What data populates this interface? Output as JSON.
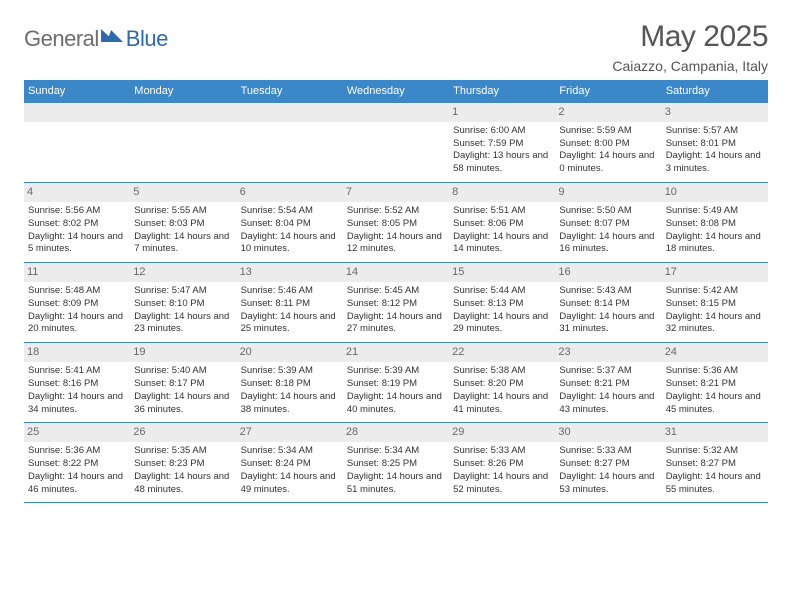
{
  "logo": {
    "general": "General",
    "blue": "Blue"
  },
  "colors": {
    "header_bg": "#3b87c8",
    "header_text": "#ffffff",
    "day_num_bg": "#ececec",
    "day_num_text": "#6a6a6a",
    "body_text": "#333333",
    "title_text": "#555555",
    "logo_grey": "#6d6d6d",
    "logo_blue": "#2f6aaa",
    "rule": "#3b87c8"
  },
  "title": "May 2025",
  "location": "Caiazzo, Campania, Italy",
  "dayHeaders": [
    "Sunday",
    "Monday",
    "Tuesday",
    "Wednesday",
    "Thursday",
    "Friday",
    "Saturday"
  ],
  "weeks": [
    [
      null,
      null,
      null,
      null,
      {
        "n": "1",
        "sunrise": "6:00 AM",
        "sunset": "7:59 PM",
        "daylight": "13 hours and 58 minutes."
      },
      {
        "n": "2",
        "sunrise": "5:59 AM",
        "sunset": "8:00 PM",
        "daylight": "14 hours and 0 minutes."
      },
      {
        "n": "3",
        "sunrise": "5:57 AM",
        "sunset": "8:01 PM",
        "daylight": "14 hours and 3 minutes."
      }
    ],
    [
      {
        "n": "4",
        "sunrise": "5:56 AM",
        "sunset": "8:02 PM",
        "daylight": "14 hours and 5 minutes."
      },
      {
        "n": "5",
        "sunrise": "5:55 AM",
        "sunset": "8:03 PM",
        "daylight": "14 hours and 7 minutes."
      },
      {
        "n": "6",
        "sunrise": "5:54 AM",
        "sunset": "8:04 PM",
        "daylight": "14 hours and 10 minutes."
      },
      {
        "n": "7",
        "sunrise": "5:52 AM",
        "sunset": "8:05 PM",
        "daylight": "14 hours and 12 minutes."
      },
      {
        "n": "8",
        "sunrise": "5:51 AM",
        "sunset": "8:06 PM",
        "daylight": "14 hours and 14 minutes."
      },
      {
        "n": "9",
        "sunrise": "5:50 AM",
        "sunset": "8:07 PM",
        "daylight": "14 hours and 16 minutes."
      },
      {
        "n": "10",
        "sunrise": "5:49 AM",
        "sunset": "8:08 PM",
        "daylight": "14 hours and 18 minutes."
      }
    ],
    [
      {
        "n": "11",
        "sunrise": "5:48 AM",
        "sunset": "8:09 PM",
        "daylight": "14 hours and 20 minutes."
      },
      {
        "n": "12",
        "sunrise": "5:47 AM",
        "sunset": "8:10 PM",
        "daylight": "14 hours and 23 minutes."
      },
      {
        "n": "13",
        "sunrise": "5:46 AM",
        "sunset": "8:11 PM",
        "daylight": "14 hours and 25 minutes."
      },
      {
        "n": "14",
        "sunrise": "5:45 AM",
        "sunset": "8:12 PM",
        "daylight": "14 hours and 27 minutes."
      },
      {
        "n": "15",
        "sunrise": "5:44 AM",
        "sunset": "8:13 PM",
        "daylight": "14 hours and 29 minutes."
      },
      {
        "n": "16",
        "sunrise": "5:43 AM",
        "sunset": "8:14 PM",
        "daylight": "14 hours and 31 minutes."
      },
      {
        "n": "17",
        "sunrise": "5:42 AM",
        "sunset": "8:15 PM",
        "daylight": "14 hours and 32 minutes."
      }
    ],
    [
      {
        "n": "18",
        "sunrise": "5:41 AM",
        "sunset": "8:16 PM",
        "daylight": "14 hours and 34 minutes."
      },
      {
        "n": "19",
        "sunrise": "5:40 AM",
        "sunset": "8:17 PM",
        "daylight": "14 hours and 36 minutes."
      },
      {
        "n": "20",
        "sunrise": "5:39 AM",
        "sunset": "8:18 PM",
        "daylight": "14 hours and 38 minutes."
      },
      {
        "n": "21",
        "sunrise": "5:39 AM",
        "sunset": "8:19 PM",
        "daylight": "14 hours and 40 minutes."
      },
      {
        "n": "22",
        "sunrise": "5:38 AM",
        "sunset": "8:20 PM",
        "daylight": "14 hours and 41 minutes."
      },
      {
        "n": "23",
        "sunrise": "5:37 AM",
        "sunset": "8:21 PM",
        "daylight": "14 hours and 43 minutes."
      },
      {
        "n": "24",
        "sunrise": "5:36 AM",
        "sunset": "8:21 PM",
        "daylight": "14 hours and 45 minutes."
      }
    ],
    [
      {
        "n": "25",
        "sunrise": "5:36 AM",
        "sunset": "8:22 PM",
        "daylight": "14 hours and 46 minutes."
      },
      {
        "n": "26",
        "sunrise": "5:35 AM",
        "sunset": "8:23 PM",
        "daylight": "14 hours and 48 minutes."
      },
      {
        "n": "27",
        "sunrise": "5:34 AM",
        "sunset": "8:24 PM",
        "daylight": "14 hours and 49 minutes."
      },
      {
        "n": "28",
        "sunrise": "5:34 AM",
        "sunset": "8:25 PM",
        "daylight": "14 hours and 51 minutes."
      },
      {
        "n": "29",
        "sunrise": "5:33 AM",
        "sunset": "8:26 PM",
        "daylight": "14 hours and 52 minutes."
      },
      {
        "n": "30",
        "sunrise": "5:33 AM",
        "sunset": "8:27 PM",
        "daylight": "14 hours and 53 minutes."
      },
      {
        "n": "31",
        "sunrise": "5:32 AM",
        "sunset": "8:27 PM",
        "daylight": "14 hours and 55 minutes."
      }
    ]
  ],
  "labels": {
    "sunrise": "Sunrise: ",
    "sunset": "Sunset: ",
    "daylight": "Daylight: "
  }
}
